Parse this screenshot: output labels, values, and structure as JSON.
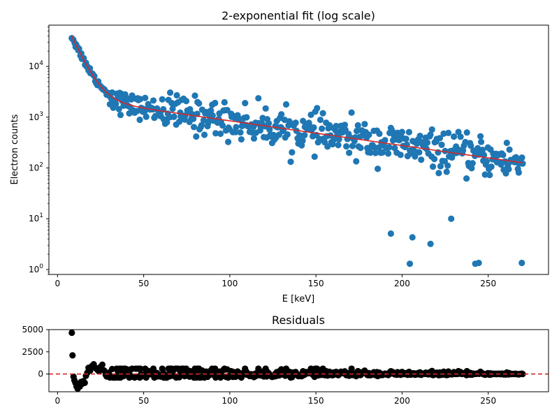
{
  "chart_data": [
    {
      "type": "scatter",
      "title": "2-exponential fit (log scale)",
      "xlabel": "E [keV]",
      "ylabel": "Electron counts",
      "xlim": [
        -5,
        285
      ],
      "ylim": [
        0.8,
        65000
      ],
      "yscale": "log",
      "grid": false,
      "legend": "none",
      "xticks": [
        0,
        50,
        100,
        150,
        200,
        250
      ],
      "yticks": [
        {
          "value": 1,
          "label": "10^0"
        },
        {
          "value": 10,
          "label": "10^1"
        },
        {
          "value": 100,
          "label": "10^2"
        },
        {
          "value": 1000,
          "label": "10^3"
        },
        {
          "value": 10000,
          "label": "10^4"
        }
      ],
      "marker_color": "#1f77b4",
      "fit_color": "#d62728",
      "fit_model": {
        "a1": 150000,
        "b1": 0.17,
        "a2": 2600,
        "b2": 0.0112,
        "xmin": 8.2,
        "xmax": 270
      },
      "data_points": {
        "xmin": 8.2,
        "xmax": 270,
        "count": 480,
        "scatter_width": 0.42,
        "scatter_width_low": 0.08
      },
      "outliers": [
        [
          193.5,
          5.1
        ],
        [
          204.5,
          1.3
        ],
        [
          206,
          4.3
        ],
        [
          216.5,
          3.2
        ],
        [
          228.5,
          10
        ],
        [
          242.5,
          1.3
        ],
        [
          244.5,
          1.35
        ],
        [
          269.5,
          1.35
        ]
      ]
    },
    {
      "type": "scatter",
      "title": "Residuals",
      "xlabel": "",
      "ylabel": "",
      "xlim": [
        -5,
        285
      ],
      "ylim": [
        -2000,
        5000
      ],
      "grid": false,
      "legend": "none",
      "xticks": [
        0,
        50,
        100,
        150,
        200,
        250
      ],
      "yticks": [
        0,
        2500,
        5000
      ],
      "marker_color": "#000000",
      "zero_line_color": "#d62728",
      "early_points": [
        [
          8.3,
          4650
        ],
        [
          8.7,
          2100
        ],
        [
          9.3,
          -300
        ],
        [
          9.8,
          -700
        ],
        [
          10.4,
          -1000
        ],
        [
          11,
          -1400
        ],
        [
          11.7,
          -1650
        ],
        [
          12.3,
          -1200
        ],
        [
          13,
          -1400
        ],
        [
          13.6,
          -900
        ],
        [
          14.3,
          -1100
        ],
        [
          15,
          -800
        ],
        [
          15.8,
          -1000
        ],
        [
          16.5,
          -200
        ],
        [
          17.3,
          150
        ],
        [
          18,
          700
        ],
        [
          19,
          400
        ],
        [
          20,
          900
        ],
        [
          21,
          1100
        ],
        [
          22,
          700
        ],
        [
          23,
          500
        ],
        [
          24,
          300
        ],
        [
          25,
          800
        ],
        [
          26,
          1050
        ],
        [
          27,
          400
        ],
        [
          28,
          -100
        ]
      ]
    }
  ]
}
